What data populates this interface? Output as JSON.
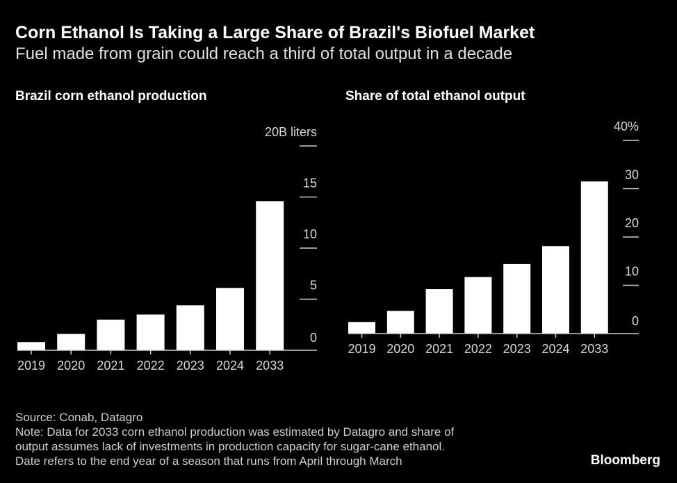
{
  "title": "Corn Ethanol Is Taking a Large Share of Brazil's Biofuel Market",
  "subtitle": "Fuel made from grain could reach a third of total output in a decade",
  "chart_data": [
    {
      "type": "bar",
      "title": "Brazil corn ethanol production",
      "unit_label": "20B liters",
      "categories": [
        "2019",
        "2020",
        "2021",
        "2022",
        "2023",
        "2024",
        "2033"
      ],
      "values": [
        0.8,
        1.6,
        3.0,
        3.5,
        4.4,
        6.1,
        14.6
      ],
      "ylim": [
        0,
        20
      ],
      "yticks": [
        0,
        5,
        10,
        15,
        20
      ],
      "ytick_labels": [
        "0",
        "5",
        "10",
        "15",
        "20B liters"
      ],
      "axis_side": "right",
      "bar_color": "#ffffff"
    },
    {
      "type": "bar",
      "title": "Share of total ethanol output",
      "unit_label": "40%",
      "categories": [
        "2019",
        "2020",
        "2021",
        "2022",
        "2023",
        "2024",
        "2033"
      ],
      "values": [
        2.4,
        4.7,
        9.2,
        11.7,
        14.4,
        18.1,
        31.5
      ],
      "ylim": [
        0,
        40
      ],
      "yticks": [
        0,
        10,
        20,
        30,
        40
      ],
      "ytick_labels": [
        "0",
        "10",
        "20",
        "30",
        "40%"
      ],
      "axis_side": "right",
      "bar_color": "#ffffff"
    }
  ],
  "footer": {
    "source": "Source: Conab, Datagro",
    "note_lines": [
      "Note: Data for 2033 corn ethanol production was estimated by Datagro and share of",
      "output assumes lack of investments in production capacity for sugar-cane ethanol.",
      "Date refers to the end year of a season that runs from April through March"
    ],
    "logo": "Bloomberg"
  }
}
